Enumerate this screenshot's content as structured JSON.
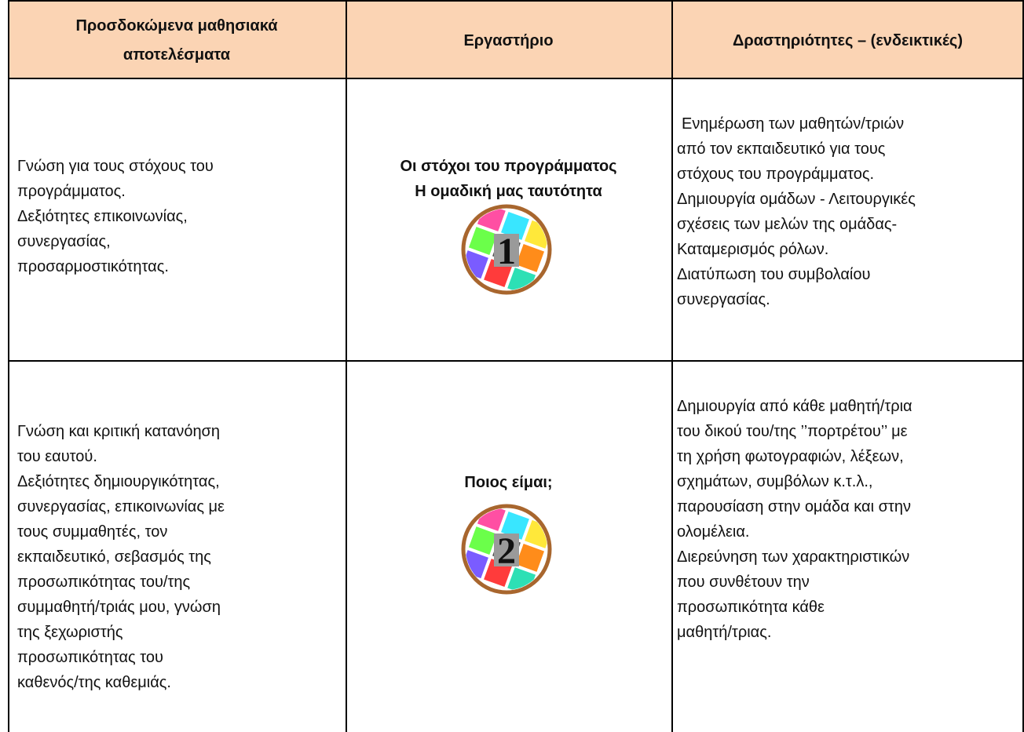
{
  "header": {
    "cells": [
      [
        "Προσδοκώμενα μαθησιακά",
        "αποτελέσματα"
      ],
      [
        "Εργαστήριο"
      ],
      [
        "Δραστηριότητες – (ενδεικτικές)"
      ]
    ]
  },
  "rows": [
    {
      "outcomes": [
        "Γνώση για τους στόχους του",
        "προγράμματος.",
        "Δεξιότητες επικοινωνίας,",
        "συνεργασίας,",
        "προσαρμοστικότητας."
      ],
      "workshop": {
        "title": [
          "Οι στόχοι του προγράμματος",
          "Η ομαδική μας ταυτότητα"
        ],
        "badge": "1"
      },
      "activities": [
        "Ενημέρωση των μαθητών/τριών",
        "από τον εκπαιδευτικό για τους",
        "στόχους του προγράμματος.",
        "Δημιουργία ομάδων - Λειτουργικές",
        "σχέσεις των μελών της ομάδας-",
        "Καταμερισμός ρόλων.",
        "Διατύπωση του συμβολαίου",
        "συνεργασίας."
      ]
    },
    {
      "outcomes": [
        "Γνώση και κριτική κατανόηση",
        "του εαυτού.",
        "Δεξιότητες δημιουργικότητας,",
        "συνεργασίας, επικοινωνίας με",
        "τους συμμαθητές, τον",
        "εκπαιδευτικό, σεβασμός της",
        "προσωπικότητας του/της",
        "συμμαθητή/τριάς μου, γνώση",
        "της ξεχωριστής",
        "προσωπικότητας του",
        "καθενός/της καθεμιάς."
      ],
      "workshop": {
        "title": [
          "Ποιος είμαι;"
        ],
        "badge": "2"
      },
      "activities": [
        "Δημιουργία από κάθε μαθητή/τρια",
        "του δικού του/της ’’πορτρέτου’’ με",
        "τη χρήση φωτογραφιών, λέξεων,",
        "σχημάτων, συμβόλων κ.τ.λ.,",
        "παρουσίαση στην ομάδα και στην",
        "ολομέλεια.",
        "Διερεύνηση των χαρακτηριστικών",
        "που συνθέτουν την",
        "προσωπικότητα κάθε",
        "μαθητή/τριας."
      ]
    }
  ]
}
